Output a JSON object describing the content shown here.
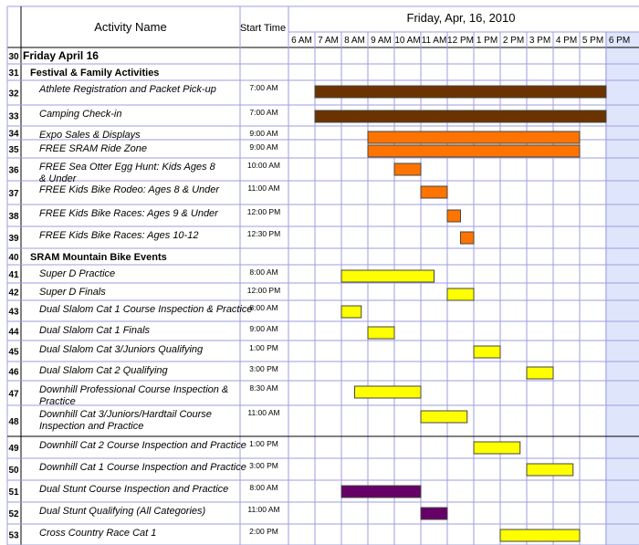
{
  "chart_data": {
    "type": "gantt",
    "header": {
      "col_activity": "Activity Name",
      "col_start": "Start Time",
      "date": "Friday, Apr, 16, 2010",
      "hours": [
        "6 AM",
        "7 AM",
        "8 AM",
        "9 AM",
        "10 AM",
        "11 AM",
        "12 PM",
        "1 PM",
        "2 PM",
        "3 PM",
        "4 PM",
        "5 PM",
        "6 PM"
      ]
    },
    "axis_range_hours": [
      6,
      19
    ],
    "rows": [
      {
        "num": "30",
        "name": "Friday April 16",
        "start": "",
        "kind": "day"
      },
      {
        "num": "31",
        "name": "Festival & Family Activities",
        "start": "",
        "kind": "group"
      },
      {
        "num": "32",
        "name": "Athlete Registration and Packet Pick-up",
        "start": "7:00 AM",
        "bar": [
          7,
          18
        ],
        "color": "#6b3300"
      },
      {
        "num": "33",
        "name": "Camping Check-in",
        "start": "7:00 AM",
        "bar": [
          7,
          18
        ],
        "color": "#6b3300"
      },
      {
        "num": "34",
        "name": "Expo Sales & Displays",
        "start": "9:00 AM",
        "bar": [
          9,
          17
        ],
        "color": "#ff7400"
      },
      {
        "num": "35",
        "name": "FREE SRAM Ride Zone",
        "start": "9:00 AM",
        "bar": [
          9,
          17
        ],
        "color": "#ff7400"
      },
      {
        "num": "36",
        "name": "FREE Sea Otter Egg Hunt: Kids Ages 8 & Under",
        "start": "10:00 AM",
        "bar": [
          10,
          11
        ],
        "color": "#ff7400"
      },
      {
        "num": "37",
        "name": "FREE Kids Bike Rodeo: Ages 8 & Under",
        "start": "11:00 AM",
        "bar": [
          11,
          12
        ],
        "color": "#ff7400"
      },
      {
        "num": "38",
        "name": "FREE Kids Bike Races: Ages 9 & Under",
        "start": "12:00 PM",
        "bar": [
          12,
          12.5
        ],
        "color": "#ff7400"
      },
      {
        "num": "39",
        "name": "FREE Kids Bike Races: Ages 10-12",
        "start": "12:30 PM",
        "bar": [
          12.5,
          13
        ],
        "color": "#ff7400"
      },
      {
        "num": "40",
        "name": "SRAM Mountain Bike Events",
        "start": "",
        "kind": "group"
      },
      {
        "num": "41",
        "name": "Super D Practice",
        "start": "8:00 AM",
        "bar": [
          8,
          11.5
        ],
        "color": "#ffff00"
      },
      {
        "num": "42",
        "name": "Super D Finals",
        "start": "12:00 PM",
        "bar": [
          12,
          13
        ],
        "color": "#ffff00"
      },
      {
        "num": "43",
        "name": "Dual Slalom Cat 1 Course Inspection & Practice",
        "start": "8:00 AM",
        "bar": [
          8,
          8.75
        ],
        "color": "#ffff00"
      },
      {
        "num": "44",
        "name": "Dual Slalom Cat 1 Finals",
        "start": "9:00 AM",
        "bar": [
          9,
          10
        ],
        "color": "#ffff00"
      },
      {
        "num": "45",
        "name": "Dual Slalom Cat 3/Juniors Qualifying",
        "start": "1:00 PM",
        "bar": [
          13,
          14
        ],
        "color": "#ffff00"
      },
      {
        "num": "46",
        "name": "Dual Slalom Cat 2 Qualifying",
        "start": "3:00 PM",
        "bar": [
          15,
          16
        ],
        "color": "#ffff00"
      },
      {
        "num": "47",
        "name": "Downhill Professional Course Inspection & Practice",
        "start": "8:30 AM",
        "bar": [
          8.5,
          11
        ],
        "color": "#ffff00"
      },
      {
        "num": "48",
        "name": "Downhill Cat 3/Juniors/Hardtail Course Inspection and Practice",
        "start": "11:00 AM",
        "bar": [
          11,
          12.75
        ],
        "color": "#ffff00"
      },
      {
        "num": "49",
        "name": "Downhill Cat 2 Course Inspection and Practice",
        "start": "1:00 PM",
        "bar": [
          13,
          14.75
        ],
        "color": "#ffff00"
      },
      {
        "num": "50",
        "name": "Downhill Cat 1 Course Inspection and Practice",
        "start": "3:00 PM",
        "bar": [
          15,
          16.75
        ],
        "color": "#ffff00"
      },
      {
        "num": "51",
        "name": "Dual Stunt Course Inspection and Practice",
        "start": "8:00 AM",
        "bar": [
          8,
          11
        ],
        "color": "#660066"
      },
      {
        "num": "52",
        "name": "Dual Stunt Qualifying (All Categories)",
        "start": "11:00 AM",
        "bar": [
          11,
          12
        ],
        "color": "#660066"
      },
      {
        "num": "53",
        "name": "Cross Country Race Cat 1",
        "start": "2:00 PM",
        "bar": [
          14,
          17
        ],
        "color": "#ffff00"
      }
    ]
  },
  "colors": {
    "grid": "#9d9de0",
    "shaded_column": "#dfe6fb"
  }
}
